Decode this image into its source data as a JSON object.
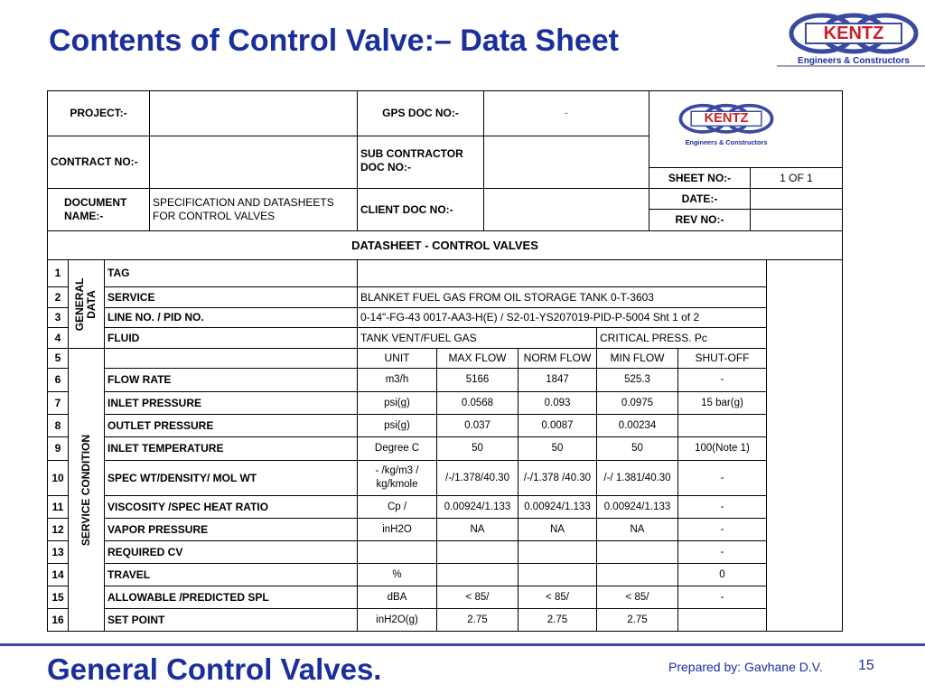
{
  "header": {
    "title": "Contents of Control Valve:– Data Sheet",
    "logo": "KENTZ",
    "logo_tagline": "Engineers & Constructors"
  },
  "info": {
    "project_label": "PROJECT:-",
    "gps_doc_label": "GPS DOC NO:-",
    "gps_doc_value": "-",
    "contract_label": "CONTRACT NO:-",
    "sub_contractor_label": "SUB CONTRACTOR DOC NO:-",
    "document_name_label": "DOCUMENT NAME:-",
    "document_name_value": "SPECIFICATION AND DATASHEETS FOR CONTROL VALVES",
    "client_doc_label": "CLIENT DOC NO:-",
    "sheet_label": "SHEET NO:-",
    "sheet_value": "1  OF 1",
    "date_label": "DATE:-",
    "rev_label": "REV NO:-"
  },
  "datasheet_title": "DATASHEET  - CONTROL VALVES",
  "groups": [
    "GENERAL DATA",
    "SERVICE CONDITION"
  ],
  "general_rows": [
    {
      "no": "1",
      "param": "TAG"
    },
    {
      "no": "2",
      "param": "SERVICE",
      "value": "BLANKET FUEL GAS FROM OIL STORAGE TANK 0-T-3603"
    },
    {
      "no": "3",
      "param": "LINE NO. / PID NO.",
      "value": "0-14\"-FG-43   0017-AA3-H(E) / S2-01-YS207019-PID-P-5004   Sht  1 of 2"
    },
    {
      "no": "4",
      "param": "FLUID",
      "value": "TANK VENT/FUEL GAS",
      "extra": "CRITICAL PRESS.  Pc"
    }
  ],
  "columns_row": {
    "no": "5",
    "columns": [
      "UNIT",
      "MAX FLOW",
      "NORM FLOW",
      "MIN FLOW",
      "SHUT-OFF"
    ]
  },
  "rows": [
    [
      "6",
      "FLOW RATE",
      "m3/h",
      "5166",
      "1847",
      "525.3",
      "-"
    ],
    [
      "7",
      "INLET PRESSURE",
      "psi(g)",
      "0.0568",
      "0.093",
      "0.0975",
      "15 bar(g)"
    ],
    [
      "8",
      "OUTLET PRESSURE",
      "psi(g)",
      "0.037",
      "0.0087",
      "0.00234",
      null
    ],
    [
      "9",
      "INLET TEMPERATURE",
      "Degree C",
      "50",
      "50",
      "50",
      "100(Note 1)"
    ],
    [
      "10",
      "SPEC WT/DENSITY/ MOL WT",
      "- /kg/m3 / kg/kmole",
      "/-/1.378/40.30",
      "/-/1.378 /40.30",
      "/-/ 1.381/40.30",
      "-"
    ],
    [
      "11",
      "VISCOSITY /SPEC HEAT RATIO",
      "Cp /",
      "0.00924/1.133",
      "0.00924/1.133",
      "0.00924/1.133",
      "-"
    ],
    [
      "12",
      "VAPOR PRESSURE",
      "inH2O",
      "NA",
      "NA",
      "NA",
      "-"
    ],
    [
      "13",
      "REQUIRED CV",
      null,
      null,
      null,
      null,
      "-"
    ],
    [
      "14",
      "TRAVEL",
      "%",
      null,
      null,
      null,
      "0"
    ],
    [
      "15",
      "ALLOWABLE /PREDICTED  SPL",
      "dBA",
      "< 85/",
      "< 85/",
      "< 85/",
      "-"
    ],
    [
      "16",
      "SET POINT",
      "inH2O(g)",
      "2.75",
      "2.75",
      "2.75",
      null
    ]
  ],
  "footer": {
    "title": "General Control Valves.",
    "prepared_by": "Prepared by: Gavhane D.V.",
    "page": "15"
  }
}
